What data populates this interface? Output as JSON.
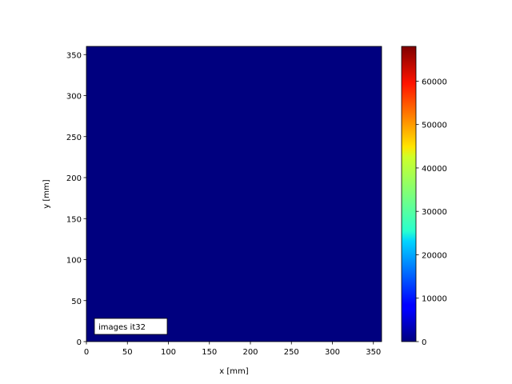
{
  "chart_data": {
    "type": "heatmap",
    "xlabel": "x [mm]",
    "ylabel": "y [mm]",
    "xlim": [
      0,
      360
    ],
    "ylim": [
      0,
      360
    ],
    "xticks": [
      0,
      50,
      100,
      150,
      200,
      250,
      300,
      350
    ],
    "yticks": [
      0,
      50,
      100,
      150,
      200,
      250,
      300,
      350
    ],
    "values": "uniform 0 across the whole field",
    "fill_value": 0,
    "fill_color": "#00007f",
    "colormap": "jet",
    "colorbar": {
      "range": [
        0,
        68000
      ],
      "ticks": [
        0,
        10000,
        20000,
        30000,
        40000,
        50000,
        60000
      ]
    },
    "annotation": "images it32",
    "annotation_placement": "bottom-left",
    "grid": false
  }
}
